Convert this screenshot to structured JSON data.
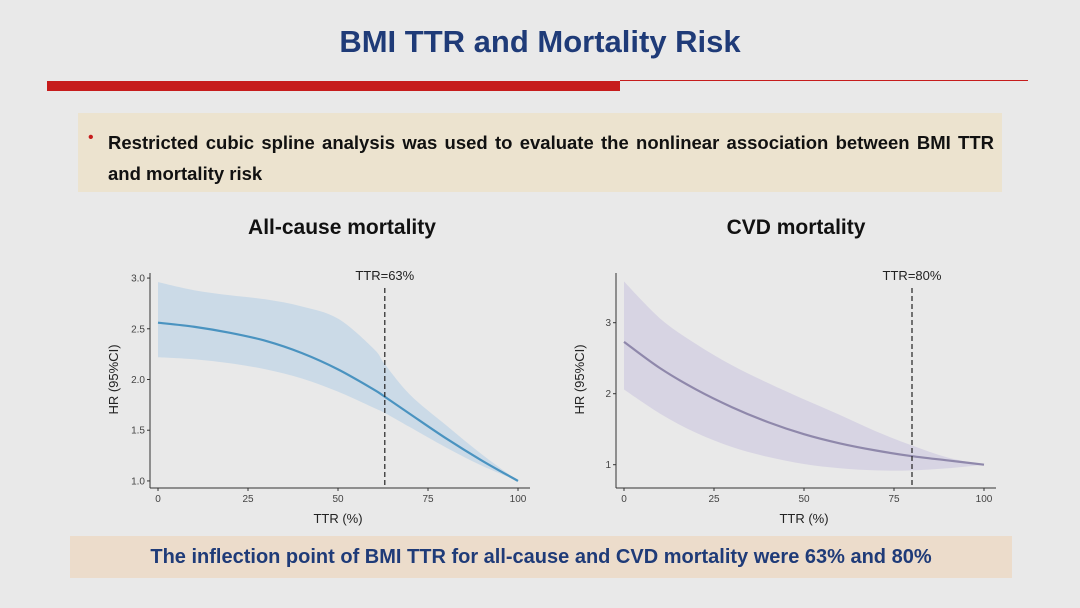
{
  "slide": {
    "title": "BMI TTR and Mortality Risk",
    "bullet": "Restricted cubic spline analysis was used to evaluate the nonlinear association between BMI TTR and mortality risk",
    "conclusion": "The inflection point of BMI TTR for all-cause and CVD mortality were 63% and 80%"
  },
  "colors": {
    "title": "#1f3b78",
    "accent_red": "#c61c1c",
    "bullet_bg": "#ece3cf",
    "conclusion_bg": "#ecdccb"
  },
  "chart_data": [
    {
      "type": "line",
      "title": "All-cause mortality",
      "xlabel": "TTR (%)",
      "ylabel": "HR (95%CI)",
      "xlim": [
        0,
        100
      ],
      "ylim": [
        0.95,
        3.05
      ],
      "xticks": [
        0,
        25,
        50,
        75,
        100
      ],
      "yticks": [
        1.0,
        1.5,
        2.0,
        2.5,
        3.0
      ],
      "ytick_labels": [
        "1.0",
        "1.5",
        "2.0",
        "2.5",
        "3.0"
      ],
      "grid": false,
      "line_color": "#4a93c0",
      "band_color": "#c6d7e6",
      "vline": {
        "x": 63,
        "label": "TTR=63%"
      },
      "series": [
        {
          "x": [
            0,
            10,
            20,
            30,
            40,
            50,
            60,
            63,
            70,
            80,
            90,
            100
          ],
          "y": [
            2.56,
            2.52,
            2.46,
            2.38,
            2.26,
            2.1,
            1.9,
            1.83,
            1.66,
            1.42,
            1.2,
            1.0
          ],
          "lower": [
            2.22,
            2.2,
            2.16,
            2.1,
            2.01,
            1.88,
            1.72,
            1.67,
            1.53,
            1.33,
            1.15,
            1.0
          ],
          "upper": [
            2.96,
            2.88,
            2.83,
            2.79,
            2.72,
            2.6,
            2.3,
            2.15,
            1.85,
            1.55,
            1.26,
            1.0
          ]
        }
      ]
    },
    {
      "type": "line",
      "title": "CVD mortality",
      "xlabel": "TTR (%)",
      "ylabel": "HR (95%CI)",
      "xlim": [
        0,
        100
      ],
      "ylim": [
        0.7,
        3.7
      ],
      "xticks": [
        0,
        25,
        50,
        75,
        100
      ],
      "yticks": [
        1,
        2,
        3
      ],
      "ytick_labels": [
        "1",
        "2",
        "3"
      ],
      "grid": false,
      "line_color": "#8f88ab",
      "band_color": "#d3d0e2",
      "vline": {
        "x": 80,
        "label": "TTR=80%"
      },
      "series": [
        {
          "x": [
            0,
            10,
            20,
            30,
            40,
            50,
            60,
            70,
            80,
            90,
            100
          ],
          "y": [
            2.73,
            2.36,
            2.06,
            1.81,
            1.6,
            1.43,
            1.3,
            1.2,
            1.12,
            1.06,
            1.0
          ],
          "lower": [
            2.06,
            1.72,
            1.45,
            1.25,
            1.11,
            1.01,
            0.95,
            0.92,
            0.92,
            0.95,
            1.0
          ],
          "upper": [
            3.58,
            3.06,
            2.7,
            2.4,
            2.15,
            1.92,
            1.7,
            1.47,
            1.27,
            1.1,
            1.0
          ]
        }
      ]
    }
  ]
}
